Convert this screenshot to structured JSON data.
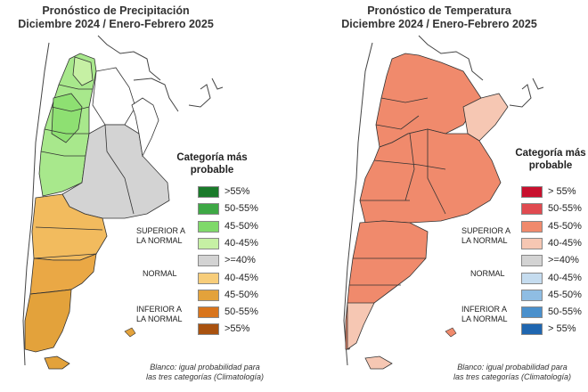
{
  "precipitation": {
    "title_line1": "Pronóstico de Precipitación",
    "title_line2": "Diciembre 2024 / Enero-Febrero 2025",
    "legend_title_line1": "Categoría más",
    "legend_title_line2": "probable",
    "legend_items": [
      {
        "label": ">55%",
        "color": "#1a7a2a"
      },
      {
        "label": "50-55%",
        "color": "#3ea845"
      },
      {
        "label": "45-50%",
        "color": "#7fd96a"
      },
      {
        "label": "40-45%",
        "color": "#c6f0a4"
      },
      {
        "label": ">=40%",
        "color": "#d3d3d3"
      },
      {
        "label": "40-45%",
        "color": "#f7cd7a"
      },
      {
        "label": "45-50%",
        "color": "#e3a23b"
      },
      {
        "label": "50-55%",
        "color": "#d8741c"
      },
      {
        "label": ">55%",
        "color": "#a9520f"
      }
    ],
    "category_superior": "SUPERIOR A LA NORMAL",
    "category_normal": "NORMAL",
    "category_inferior": "INFERIOR A LA NORMAL",
    "footnote_line1": "Blanco: igual probabilidad para",
    "footnote_line2": "las tres categorías (Climatología)"
  },
  "temperature": {
    "title_line1": "Pronóstico de Temperatura",
    "title_line2": "Diciembre 2024 / Enero-Febrero 2025",
    "legend_title_line1": "Categoría más",
    "legend_title_line2": "probable",
    "legend_items": [
      {
        "label": "> 55%",
        "color": "#c8102e"
      },
      {
        "label": "50-55%",
        "color": "#e04a50"
      },
      {
        "label": "45-50%",
        "color": "#f08a6c"
      },
      {
        "label": "40-45%",
        "color": "#f6c7b3"
      },
      {
        "label": ">=40%",
        "color": "#d3d3d3"
      },
      {
        "label": "40-45%",
        "color": "#c5dcef"
      },
      {
        "label": "45-50%",
        "color": "#8fbde3"
      },
      {
        "label": "50-55%",
        "color": "#4a90cc"
      },
      {
        "label": "> 55%",
        "color": "#1f66b0"
      }
    ],
    "category_superior": "SUPERIOR A LA NORMAL",
    "category_normal": "NORMAL",
    "category_inferior": "INFERIOR A LA NORMAL",
    "footnote_line1": "Blanco: igual probabilidad para",
    "footnote_line2": "las tres categorías (Climatología)"
  }
}
